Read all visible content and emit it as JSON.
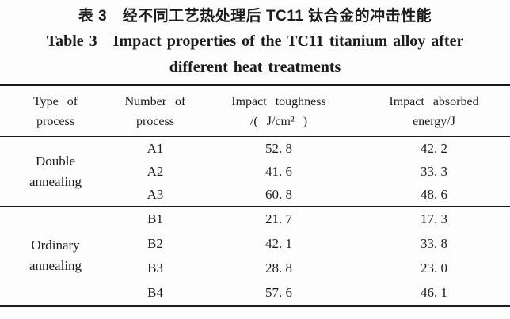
{
  "caption": {
    "zh": "表 3　经不同工艺热处理后 TC11 钛合金的冲击性能",
    "en_line1": "Table 3　Impact properties of the TC11 titanium alloy after",
    "en_line2": "different heat treatments"
  },
  "table": {
    "headers": [
      {
        "line1": "Type of",
        "line2": "process"
      },
      {
        "line1": "Number of",
        "line2": "process"
      },
      {
        "line1": "Impact toughness",
        "line2": "/( J/cm² )"
      },
      {
        "line1": "Impact absorbed",
        "line2": "energy/J"
      }
    ],
    "groups": [
      {
        "type": "Double annealing",
        "rows": [
          [
            "A1",
            "52. 8",
            "42. 2"
          ],
          [
            "A2",
            "41. 6",
            "33. 3"
          ],
          [
            "A3",
            "60. 8",
            "48. 6"
          ]
        ]
      },
      {
        "type": "Ordinary annealing",
        "rows": [
          [
            "B1",
            "21. 7",
            "17. 3"
          ],
          [
            "B2",
            "42. 1",
            "33. 8"
          ],
          [
            "B3",
            "28. 8",
            "23. 0"
          ],
          [
            "B4",
            "57. 6",
            "46. 1"
          ]
        ]
      }
    ]
  },
  "colors": {
    "text": "#1c1c1c",
    "rule": "#1a1a1a",
    "background": "#fdfdfd"
  }
}
